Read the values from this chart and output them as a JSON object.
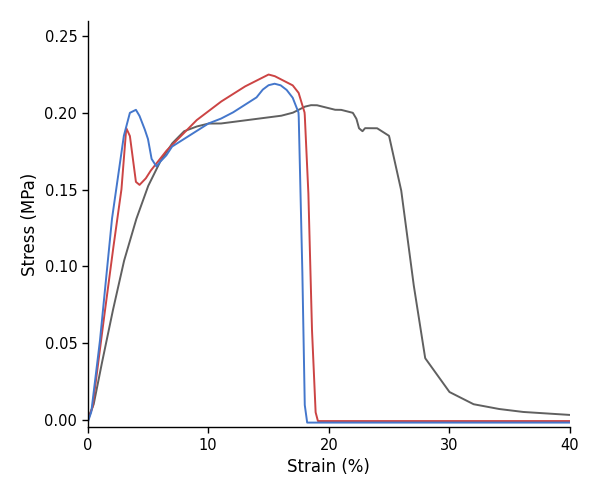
{
  "title": "",
  "xlabel": "Strain (%)",
  "ylabel": "Stress (MPa)",
  "xlim": [
    0,
    40
  ],
  "ylim": [
    -0.005,
    0.26
  ],
  "yticks": [
    0.0,
    0.05,
    0.1,
    0.15,
    0.2,
    0.25
  ],
  "xticks": [
    0,
    10,
    20,
    30,
    40
  ],
  "colors": {
    "blue": "#4477CC",
    "red": "#CC4444",
    "black": "#606060"
  },
  "figsize": [
    6.0,
    4.97
  ],
  "dpi": 100
}
